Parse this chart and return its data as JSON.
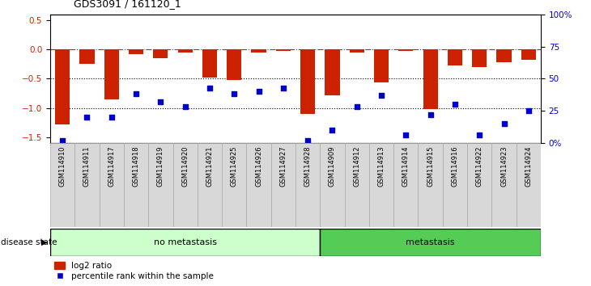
{
  "title": "GDS3091 / 161120_1",
  "samples": [
    "GSM114910",
    "GSM114911",
    "GSM114917",
    "GSM114918",
    "GSM114919",
    "GSM114920",
    "GSM114921",
    "GSM114925",
    "GSM114926",
    "GSM114927",
    "GSM114928",
    "GSM114909",
    "GSM114912",
    "GSM114913",
    "GSM114914",
    "GSM114915",
    "GSM114916",
    "GSM114922",
    "GSM114923",
    "GSM114924"
  ],
  "log2_ratio": [
    -1.28,
    -0.25,
    -0.85,
    -0.08,
    -0.15,
    -0.05,
    -0.48,
    -0.52,
    -0.05,
    -0.03,
    -1.1,
    -0.78,
    -0.05,
    -0.57,
    -0.03,
    -1.02,
    -0.28,
    -0.3,
    -0.22,
    -0.18
  ],
  "percentile_rank": [
    2,
    20,
    20,
    38,
    32,
    28,
    43,
    38,
    40,
    43,
    2,
    10,
    28,
    37,
    6,
    22,
    30,
    6,
    15,
    25
  ],
  "no_metastasis_count": 11,
  "metastasis_count": 9,
  "bar_color": "#cc2200",
  "dot_color": "#0000cc",
  "background_color": "#ffffff",
  "plot_bg_color": "#ffffff",
  "group_label_no_meta": "no metastasis",
  "group_label_meta": "metastasis",
  "group_no_meta_color": "#ccffcc",
  "group_meta_color": "#55cc55",
  "ylim_left": [
    -1.6,
    0.6
  ],
  "ylim_right": [
    0,
    100
  ],
  "yticks_left": [
    -1.5,
    -1.0,
    -0.5,
    0,
    0.5
  ],
  "yticks_right": [
    0,
    25,
    50,
    75,
    100
  ],
  "ytick_labels_right": [
    "0%",
    "25",
    "50",
    "75",
    "100%"
  ],
  "dotted_lines": [
    -0.5,
    -1.0
  ],
  "legend_log2": "log2 ratio",
  "legend_pct": "percentile rank within the sample"
}
